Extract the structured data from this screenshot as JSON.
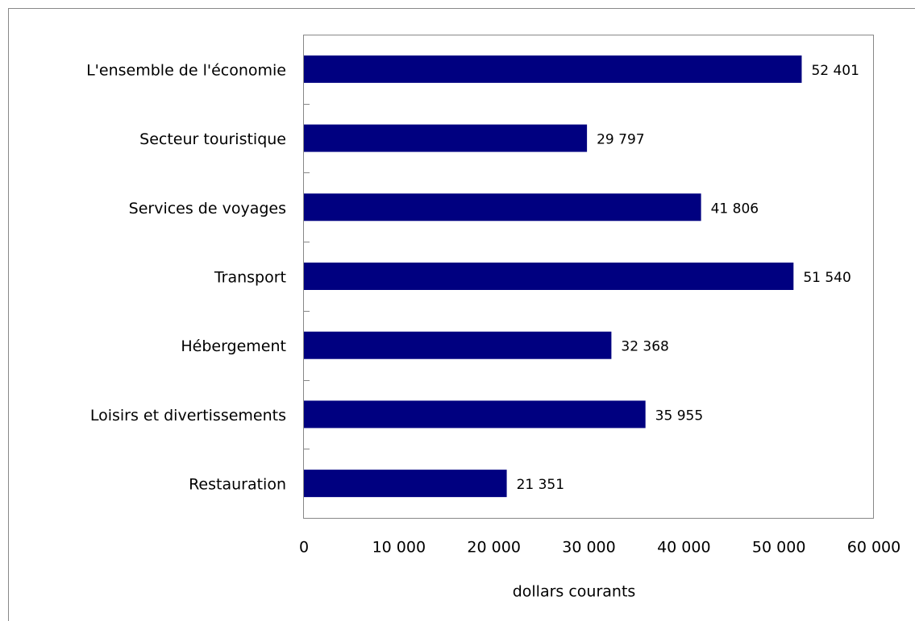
{
  "chart_data": {
    "type": "barh",
    "x_label": "dollars courants",
    "categories": [
      "L'ensemble de l'économie",
      "Secteur touristique",
      "Services de voyages",
      "Transport",
      "Hébergement",
      "Loisirs et divertissements",
      "Restauration"
    ],
    "values": [
      52401,
      29797,
      41806,
      51540,
      32368,
      35955,
      21351
    ],
    "value_labels": [
      "52 401",
      "29 797",
      "41 806",
      "51 540",
      "32 368",
      "35 955",
      "21 351"
    ],
    "color": "#000080",
    "xlim": [
      0,
      60000
    ],
    "xticks": [
      0,
      {
        "value": 10000,
        "label": "10 000"
      },
      {
        "value": 20000,
        "label": "20 000"
      },
      {
        "value": 30000,
        "label": "30 000"
      },
      {
        "value": 40000,
        "label": "40 000"
      },
      {
        "value": 50000,
        "label": "50 000"
      },
      {
        "value": 60000,
        "label": "60 000"
      }
    ],
    "grid": false
  }
}
